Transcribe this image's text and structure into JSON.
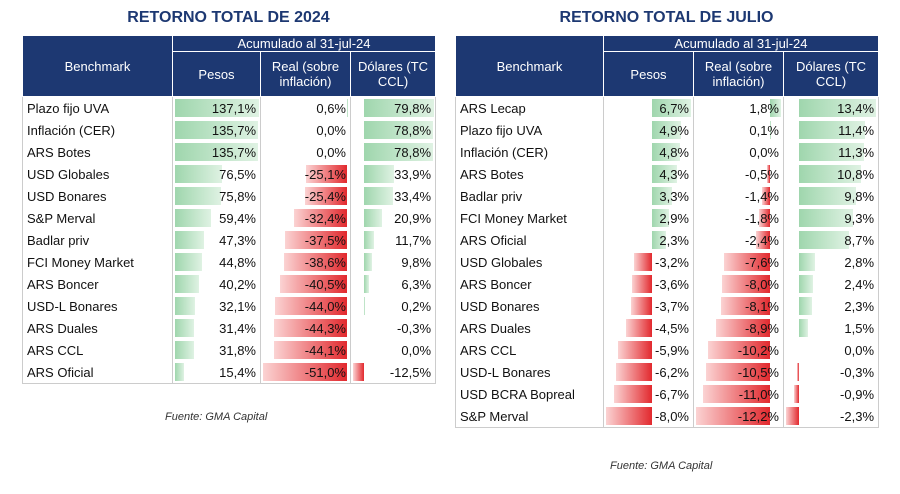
{
  "tables": [
    {
      "title": "RETORNO TOTAL DE 2024",
      "header": {
        "benchmark": "Benchmark",
        "period": "Acumulado al 31-jul-24",
        "columns": [
          "Pesos",
          "Real (sobre inflación)",
          "Dólares (TC CCL)"
        ]
      },
      "rows": [
        [
          "Plazo fijo UVA",
          "137,1%",
          "0,6%",
          "79,8%"
        ],
        [
          "Inflación (CER)",
          "135,7%",
          "0,0%",
          "78,8%"
        ],
        [
          "ARS Botes",
          "135,7%",
          "0,0%",
          "78,8%"
        ],
        [
          "USD Globales",
          "76,5%",
          "-25,1%",
          "33,9%"
        ],
        [
          "USD Bonares",
          "75,8%",
          "-25,4%",
          "33,4%"
        ],
        [
          "S&P Merval",
          "59,4%",
          "-32,4%",
          "20,9%"
        ],
        [
          "Badlar priv",
          "47,3%",
          "-37,5%",
          "11,7%"
        ],
        [
          "FCI Money Market",
          "44,8%",
          "-38,6%",
          "9,8%"
        ],
        [
          "ARS Boncer",
          "40,2%",
          "-40,5%",
          "6,3%"
        ],
        [
          "USD-L Bonares",
          "32,1%",
          "-44,0%",
          "0,2%"
        ],
        [
          "ARS Duales",
          "31,4%",
          "-44,3%",
          "-0,3%"
        ],
        [
          "ARS CCL",
          "31,8%",
          "-44,1%",
          "0,0%"
        ],
        [
          "ARS Oficial",
          "15,4%",
          "-51,0%",
          "-12,5%"
        ]
      ],
      "source": "Fuente: GMA Capital"
    },
    {
      "title": "RETORNO TOTAL DE JULIO",
      "header": {
        "benchmark": "Benchmark",
        "period": "Acumulado al 31-jul-24",
        "columns": [
          "Pesos",
          "Real (sobre inflación)",
          "Dólares (TC CCL)"
        ]
      },
      "rows": [
        [
          "ARS Lecap",
          "6,7%",
          "1,8%",
          "13,4%"
        ],
        [
          "Plazo fijo UVA",
          "4,9%",
          "0,1%",
          "11,4%"
        ],
        [
          "Inflación (CER)",
          "4,8%",
          "0,0%",
          "11,3%"
        ],
        [
          "ARS Botes",
          "4,3%",
          "-0,5%",
          "10,8%"
        ],
        [
          "Badlar priv",
          "3,3%",
          "-1,4%",
          "9,8%"
        ],
        [
          "FCI Money Market",
          "2,9%",
          "-1,8%",
          "9,3%"
        ],
        [
          "ARS Oficial",
          "2,3%",
          "-2,4%",
          "8,7%"
        ],
        [
          "USD Globales",
          "-3,2%",
          "-7,6%",
          "2,8%"
        ],
        [
          "ARS Boncer",
          "-3,6%",
          "-8,0%",
          "2,4%"
        ],
        [
          "USD Bonares",
          "-3,7%",
          "-8,1%",
          "2,3%"
        ],
        [
          "ARS Duales",
          "-4,5%",
          "-8,9%",
          "1,5%"
        ],
        [
          "ARS CCL",
          "-5,9%",
          "-10,2%",
          "0,0%"
        ],
        [
          "USD-L Bonares",
          "-6,2%",
          "-10,5%",
          "-0,3%"
        ],
        [
          "USD BCRA Bopreal",
          "-6,7%",
          "-11,0%",
          "-0,9%"
        ],
        [
          "S&P Merval",
          "-8,0%",
          "-12,2%",
          "-2,3%"
        ]
      ],
      "source": "Fuente: GMA Capital"
    }
  ]
}
